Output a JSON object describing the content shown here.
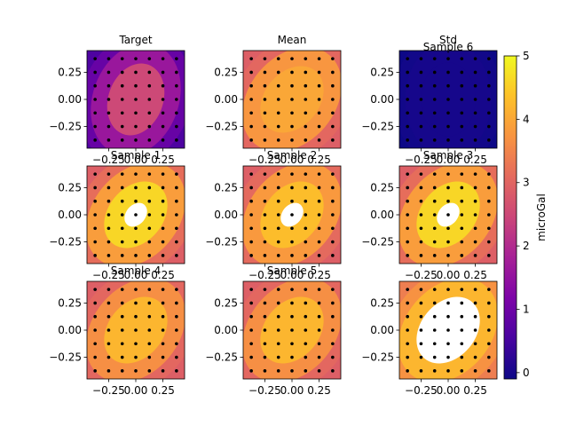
{
  "chart_data": {
    "type": "contour",
    "units_label": "microGal",
    "colormap": "plasma",
    "colorbar": {
      "min": -0.1,
      "max": 5.0,
      "ticks": [
        0,
        1,
        2,
        3,
        4,
        5
      ]
    },
    "axes": {
      "xlim": [
        -0.45,
        0.45
      ],
      "ylim": [
        -0.45,
        0.45
      ],
      "xticks": [
        -0.25,
        0.0,
        0.25
      ],
      "yticks": [
        0.25,
        0.0,
        -0.25
      ],
      "xtick_labels": [
        "−0.25",
        "0.00",
        "0.25"
      ],
      "ytick_labels": [
        "0.25",
        "0.00",
        "−0.25"
      ]
    },
    "station_grid": [
      -0.375,
      -0.25,
      -0.125,
      0.0,
      0.125,
      0.25,
      0.375
    ],
    "panels": [
      {
        "title": "Target",
        "levels": [
          0.9,
          1.6,
          2.5
        ],
        "min": 0.6,
        "inner_angle": 20
      },
      {
        "title": "Mean",
        "levels": [
          3.05,
          3.75,
          4.0
        ],
        "min": 2.9,
        "inner_angle": 40
      },
      {
        "title": "Std",
        "levels": [
          -0.05,
          0.0,
          0.0
        ],
        "min": -0.1,
        "inner_angle": 0,
        "overlay_title": "Sample 6"
      },
      {
        "title": "Sample 1",
        "levels": [
          3.15,
          3.85,
          4.6,
          5.1
        ],
        "min": 2.9,
        "inner_angle": 40
      },
      {
        "title": "Sample 2",
        "levels": [
          3.1,
          3.8,
          4.3,
          5.1
        ],
        "min": 2.9,
        "inner_angle": 40
      },
      {
        "title": "Sample 3",
        "levels": [
          3.15,
          3.85,
          4.6,
          5.1
        ],
        "min": 2.9,
        "inner_angle": 40
      },
      {
        "title": "Sample 4",
        "levels": [
          3.05,
          3.65,
          4.2
        ],
        "min": 2.9,
        "inner_angle": 40
      },
      {
        "title": "Sample 5",
        "levels": [
          3.05,
          3.65,
          4.2
        ],
        "min": 2.9,
        "inner_angle": 40
      },
      {
        "title": "",
        "levels": [
          3.7,
          4.2,
          5.1
        ],
        "min": 3.4,
        "inner_angle": 40
      }
    ]
  }
}
